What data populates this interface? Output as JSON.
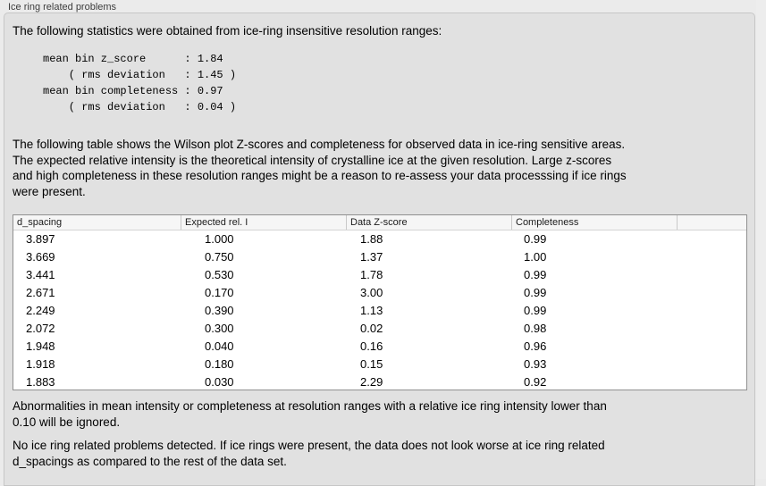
{
  "panel": {
    "title": "Ice ring related problems"
  },
  "intro": "The following statistics were obtained from ice-ring insensitive resolution ranges:",
  "stats_block": "mean bin z_score      : 1.84\n    ( rms deviation   : 1.45 )\nmean bin completeness : 0.97\n    ( rms deviation   : 0.04 )",
  "stats": {
    "mean_bin_z_score": "1.84",
    "z_score_rms_deviation": "1.45",
    "mean_bin_completeness": "0.97",
    "completeness_rms_deviation": "0.04"
  },
  "description": "The following table shows the Wilson plot Z-scores and completeness for observed data in ice-ring sensitive areas.\nThe expected relative intensity is the theoretical intensity of crystalline ice at the given resolution. Large z-scores\nand high completeness in these resolution ranges might be a reason to re-assess your data processsing if ice rings\nwere present.",
  "table": {
    "columns": [
      "d_spacing",
      "Expected rel. I",
      "Data Z-score",
      "Completeness",
      ""
    ],
    "rows": [
      [
        "3.897",
        "1.000",
        "1.88",
        "0.99"
      ],
      [
        "3.669",
        "0.750",
        "1.37",
        "1.00"
      ],
      [
        "3.441",
        "0.530",
        "1.78",
        "0.99"
      ],
      [
        "2.671",
        "0.170",
        "3.00",
        "0.99"
      ],
      [
        "2.249",
        "0.390",
        "1.13",
        "0.99"
      ],
      [
        "2.072",
        "0.300",
        "0.02",
        "0.98"
      ],
      [
        "1.948",
        "0.040",
        "0.16",
        "0.96"
      ],
      [
        "1.918",
        "0.180",
        "0.15",
        "0.93"
      ],
      [
        "1.883",
        "0.030",
        "2.29",
        "0.92"
      ]
    ]
  },
  "note": "Abnormalities in mean intensity or completeness at resolution ranges with a relative ice ring intensity lower than\n0.10 will be ignored.",
  "conclusion": "No ice ring related problems detected. If ice rings were present, the data does not look worse at ice ring related\nd_spacings as compared to the rest of the data set."
}
